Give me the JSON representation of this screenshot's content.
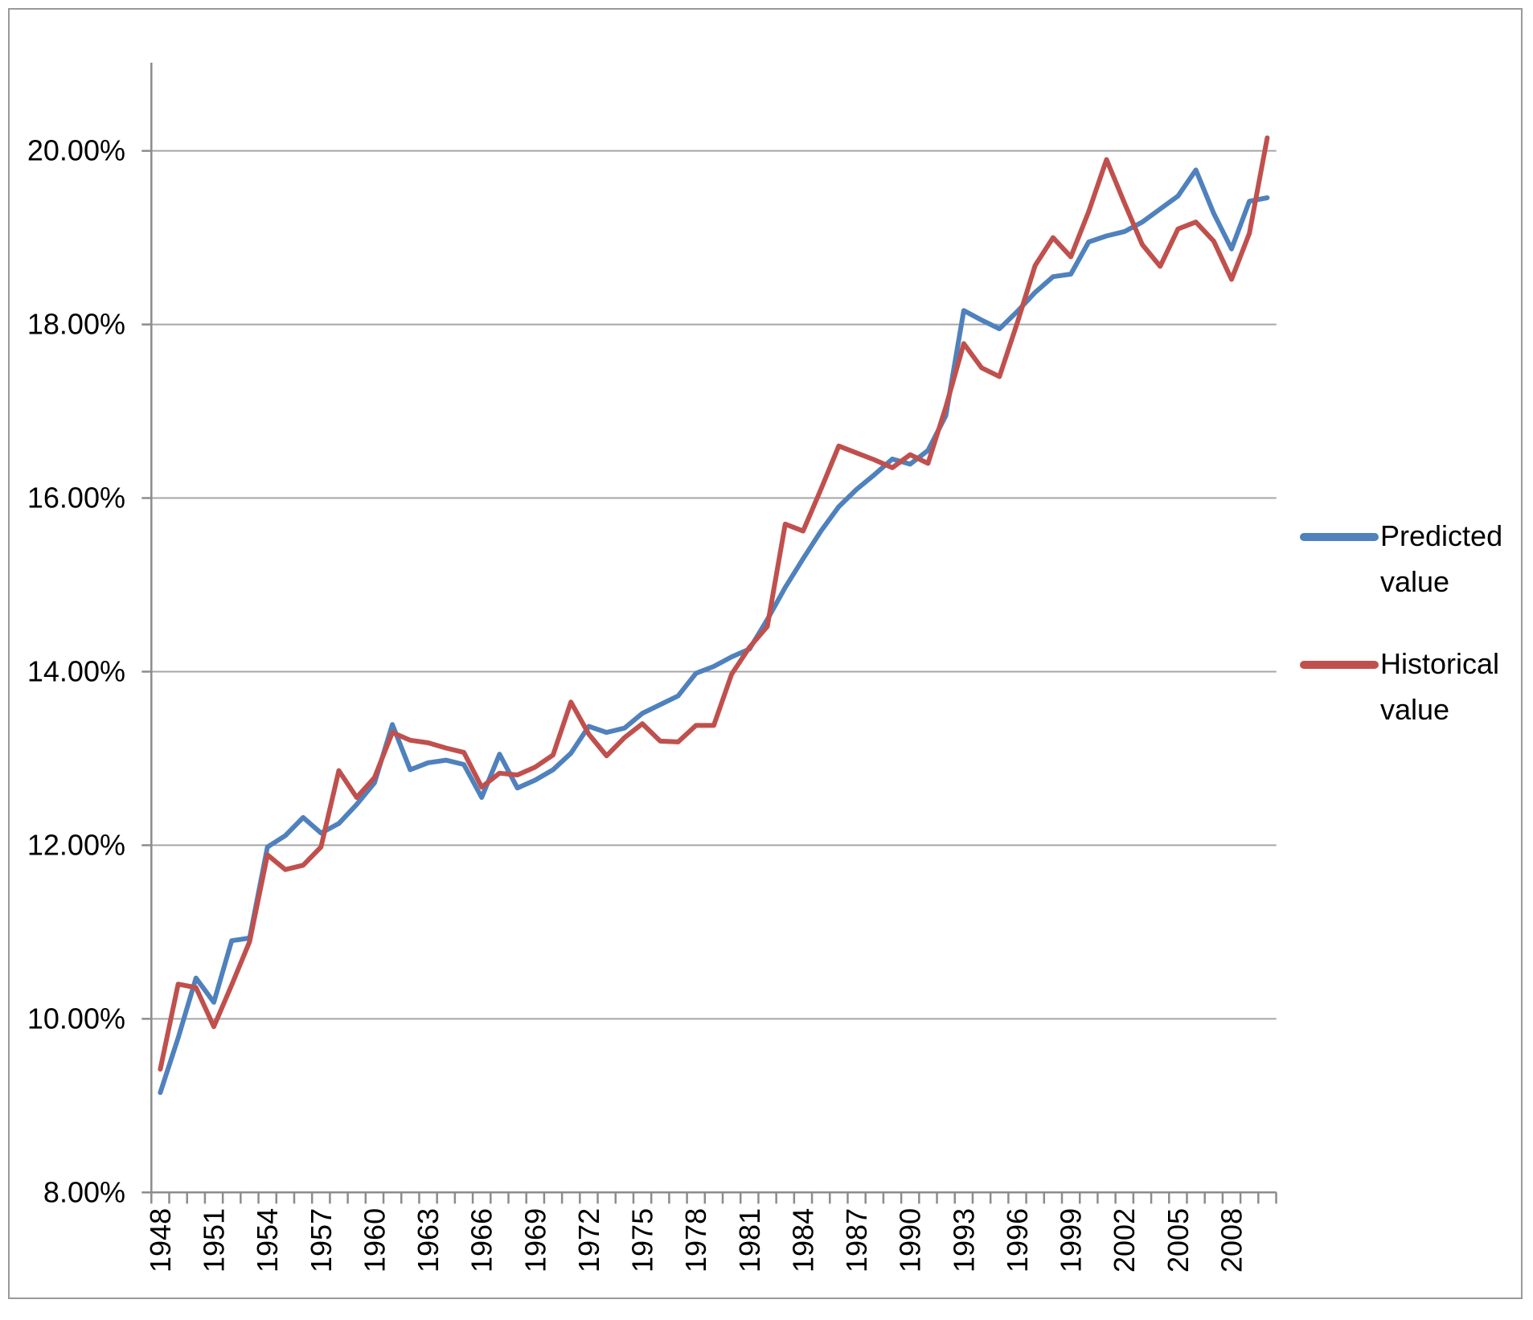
{
  "chart_data": {
    "type": "line",
    "title": "",
    "xlabel": "",
    "ylabel": "",
    "x": [
      1948,
      1949,
      1950,
      1951,
      1952,
      1953,
      1954,
      1955,
      1956,
      1957,
      1958,
      1959,
      1960,
      1961,
      1962,
      1963,
      1964,
      1965,
      1966,
      1967,
      1968,
      1969,
      1970,
      1971,
      1972,
      1973,
      1974,
      1975,
      1976,
      1977,
      1978,
      1979,
      1980,
      1981,
      1982,
      1983,
      1984,
      1985,
      1986,
      1987,
      1988,
      1989,
      1990,
      1991,
      1992,
      1993,
      1994,
      1995,
      1996,
      1997,
      1998,
      1999,
      2000,
      2001,
      2002,
      2003,
      2004,
      2005,
      2006,
      2007,
      2008,
      2009,
      2010
    ],
    "xtick_labels": [
      "1948",
      "1951",
      "1954",
      "1957",
      "1960",
      "1963",
      "1966",
      "1969",
      "1972",
      "1975",
      "1978",
      "1981",
      "1984",
      "1987",
      "1990",
      "1993",
      "1996",
      "1999",
      "2002",
      "2005",
      "2008"
    ],
    "ylim": [
      8,
      21
    ],
    "ytick_values": [
      8,
      10,
      12,
      14,
      16,
      18,
      20
    ],
    "ylabels": [
      "8.00%",
      "10.00%",
      "12.00%",
      "14.00%",
      "16.00%",
      "18.00%",
      "20.00%"
    ],
    "grid": "horizontal",
    "legend_position": "right",
    "series": [
      {
        "name": "Predicted value",
        "color": "#4f81bd",
        "values": [
          9.15,
          9.78,
          10.47,
          10.19,
          10.9,
          10.93,
          11.98,
          12.11,
          12.32,
          12.14,
          12.25,
          12.47,
          12.72,
          13.39,
          12.87,
          12.95,
          12.98,
          12.93,
          12.55,
          13.05,
          12.66,
          12.75,
          12.87,
          13.06,
          13.37,
          13.3,
          13.35,
          13.52,
          13.62,
          13.72,
          13.98,
          14.06,
          14.17,
          14.26,
          14.6,
          14.97,
          15.3,
          15.62,
          15.9,
          16.1,
          16.27,
          16.45,
          16.39,
          16.55,
          16.95,
          18.16,
          18.05,
          17.95,
          18.15,
          18.37,
          18.55,
          18.58,
          18.95,
          19.02,
          19.07,
          19.18,
          19.33,
          19.48,
          19.78,
          19.28,
          18.87,
          19.42,
          19.46
        ]
      },
      {
        "name": "Historical value",
        "color": "#c0504d",
        "values": [
          9.42,
          10.4,
          10.36,
          9.91,
          10.39,
          10.89,
          11.89,
          11.72,
          11.77,
          11.98,
          12.86,
          12.55,
          12.78,
          13.3,
          13.21,
          13.18,
          13.12,
          13.07,
          12.67,
          12.83,
          12.81,
          12.9,
          13.04,
          13.65,
          13.28,
          13.03,
          13.24,
          13.4,
          13.2,
          13.19,
          13.38,
          13.38,
          13.97,
          14.28,
          14.52,
          15.7,
          15.62,
          16.1,
          16.6,
          16.52,
          16.44,
          16.35,
          16.5,
          16.4,
          17.05,
          17.78,
          17.5,
          17.4,
          18.02,
          18.68,
          19.0,
          18.78,
          19.3,
          19.9,
          19.4,
          18.92,
          18.67,
          19.1,
          19.18,
          18.96,
          18.52,
          19.05,
          20.15
        ]
      }
    ],
    "legend_entries": [
      {
        "lines": [
          "Predicted",
          "value"
        ]
      },
      {
        "lines": [
          "Historical",
          "value"
        ]
      }
    ]
  },
  "colors": {
    "background": "#ffffff",
    "gridline": "#a6a6a6",
    "axis": "#8c8c8c",
    "tick": "#8c8c8c",
    "text": "#000000",
    "border": "#9a9a9a",
    "predicted": "#4f81bd",
    "historical": "#c0504d"
  }
}
